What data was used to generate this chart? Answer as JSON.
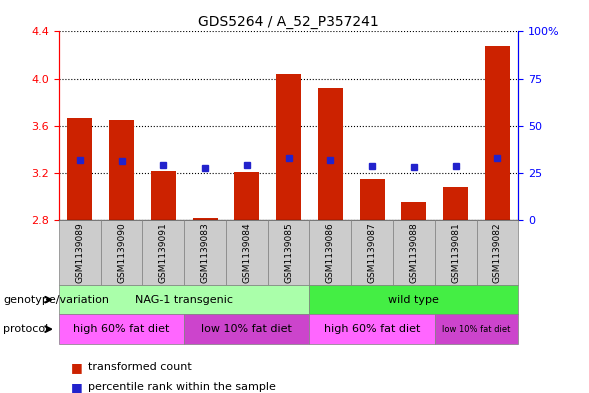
{
  "title": "GDS5264 / A_52_P357241",
  "samples": [
    "GSM1139089",
    "GSM1139090",
    "GSM1139091",
    "GSM1139083",
    "GSM1139084",
    "GSM1139085",
    "GSM1139086",
    "GSM1139087",
    "GSM1139088",
    "GSM1139081",
    "GSM1139082"
  ],
  "red_values": [
    3.67,
    3.65,
    3.22,
    2.82,
    3.21,
    4.04,
    3.92,
    3.15,
    2.95,
    3.08,
    4.28
  ],
  "blue_values": [
    3.31,
    3.3,
    3.27,
    3.24,
    3.27,
    3.33,
    3.31,
    3.26,
    3.25,
    3.26,
    3.33
  ],
  "ymin": 2.8,
  "ymax": 4.4,
  "yticks_left": [
    2.8,
    3.2,
    3.6,
    4.0,
    4.4
  ],
  "yticks_right": [
    0,
    25,
    50,
    75,
    100
  ],
  "yticks_right_labels": [
    "0",
    "25",
    "50",
    "75",
    "100%"
  ],
  "bar_color": "#cc2200",
  "dot_color": "#2222cc",
  "background_color": "#ffffff",
  "plot_bg": "#ffffff",
  "grid_color": "#000000",
  "sample_bg": "#cccccc",
  "genotype_row": [
    {
      "label": "NAG-1 transgenic",
      "start": 0,
      "end": 6,
      "color": "#aaffaa"
    },
    {
      "label": "wild type",
      "start": 6,
      "end": 11,
      "color": "#44ee44"
    }
  ],
  "protocol_row": [
    {
      "label": "high 60% fat diet",
      "start": 0,
      "end": 3,
      "color": "#ff66ff"
    },
    {
      "label": "low 10% fat diet",
      "start": 3,
      "end": 6,
      "color": "#cc44cc"
    },
    {
      "label": "high 60% fat diet",
      "start": 6,
      "end": 9,
      "color": "#ff66ff"
    },
    {
      "label": "low 10% fat diet",
      "start": 9,
      "end": 11,
      "color": "#cc44cc"
    }
  ],
  "genotype_label": "genotype/variation",
  "protocol_label": "protocol",
  "legend_items": [
    {
      "color": "#cc2200",
      "text": "transformed count"
    },
    {
      "color": "#2222cc",
      "text": "percentile rank within the sample"
    }
  ]
}
